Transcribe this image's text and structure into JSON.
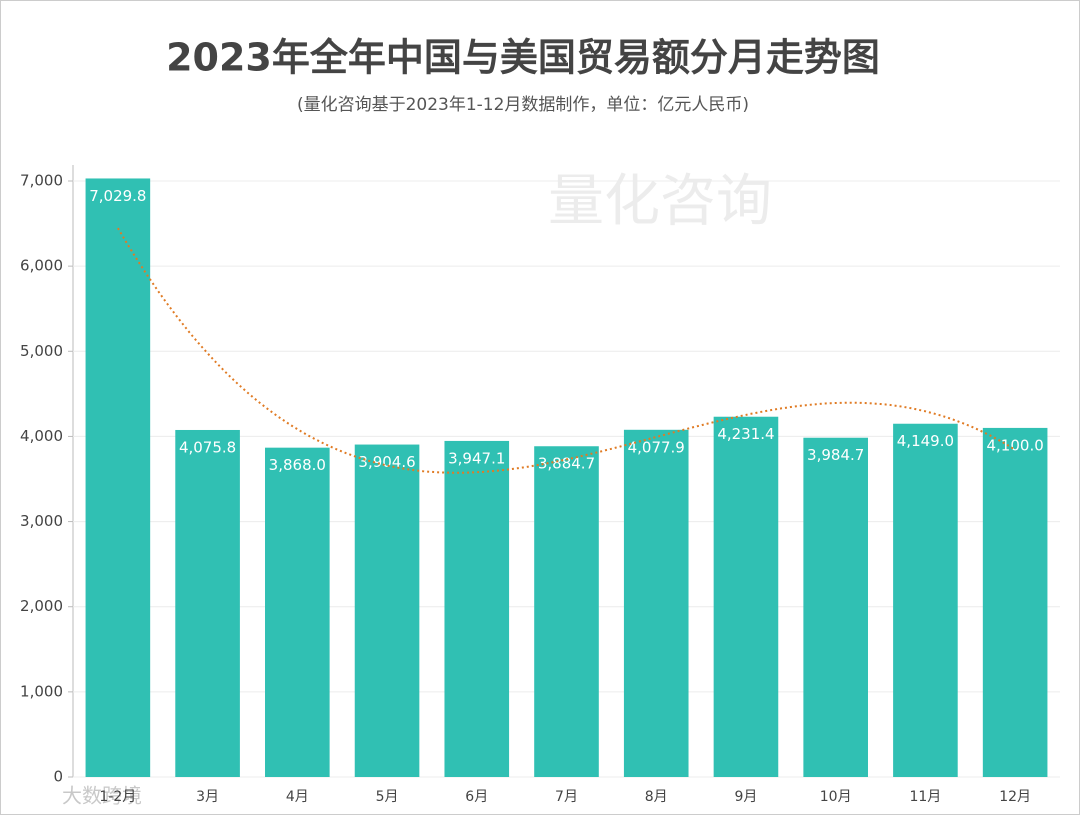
{
  "chart_data": {
    "type": "bar",
    "title": "2023年全年中国与美国贸易额分月走势图",
    "subtitle": "(量化咨询基于2023年1-12月数据制作，单位：亿元人民币)",
    "watermark": "量化咨询",
    "corner_watermark": "大数跨境",
    "categories": [
      "1-2月",
      "3月",
      "4月",
      "5月",
      "6月",
      "7月",
      "8月",
      "9月",
      "10月",
      "11月",
      "12月"
    ],
    "values": [
      7029.8,
      4075.8,
      3868.0,
      3904.6,
      3947.1,
      3884.7,
      4077.9,
      4231.4,
      3984.7,
      4149.0,
      4100.0
    ],
    "value_labels": [
      "7,029.8",
      "4,075.8",
      "3,868.0",
      "3,904.6",
      "3,947.1",
      "3,884.7",
      "4,077.9",
      "4,231.4",
      "3,984.7",
      "4,149.0",
      "4,100.0"
    ],
    "color": "#30c0b3",
    "ylim": [
      0,
      7000
    ],
    "yticks": [
      0,
      {
        "value": 1000,
        "label": "1,000"
      },
      {
        "value": 2000,
        "label": "2,000"
      },
      {
        "value": 3000,
        "label": "3,000"
      },
      {
        "value": 4000,
        "label": "4,000"
      },
      {
        "value": 5000,
        "label": "5,000"
      },
      {
        "value": 6000,
        "label": "6,000"
      },
      {
        "value": 7000,
        "label": "7,000"
      }
    ],
    "grid": true,
    "trendline": "polynomial",
    "trendline_color": "#e07b24"
  }
}
